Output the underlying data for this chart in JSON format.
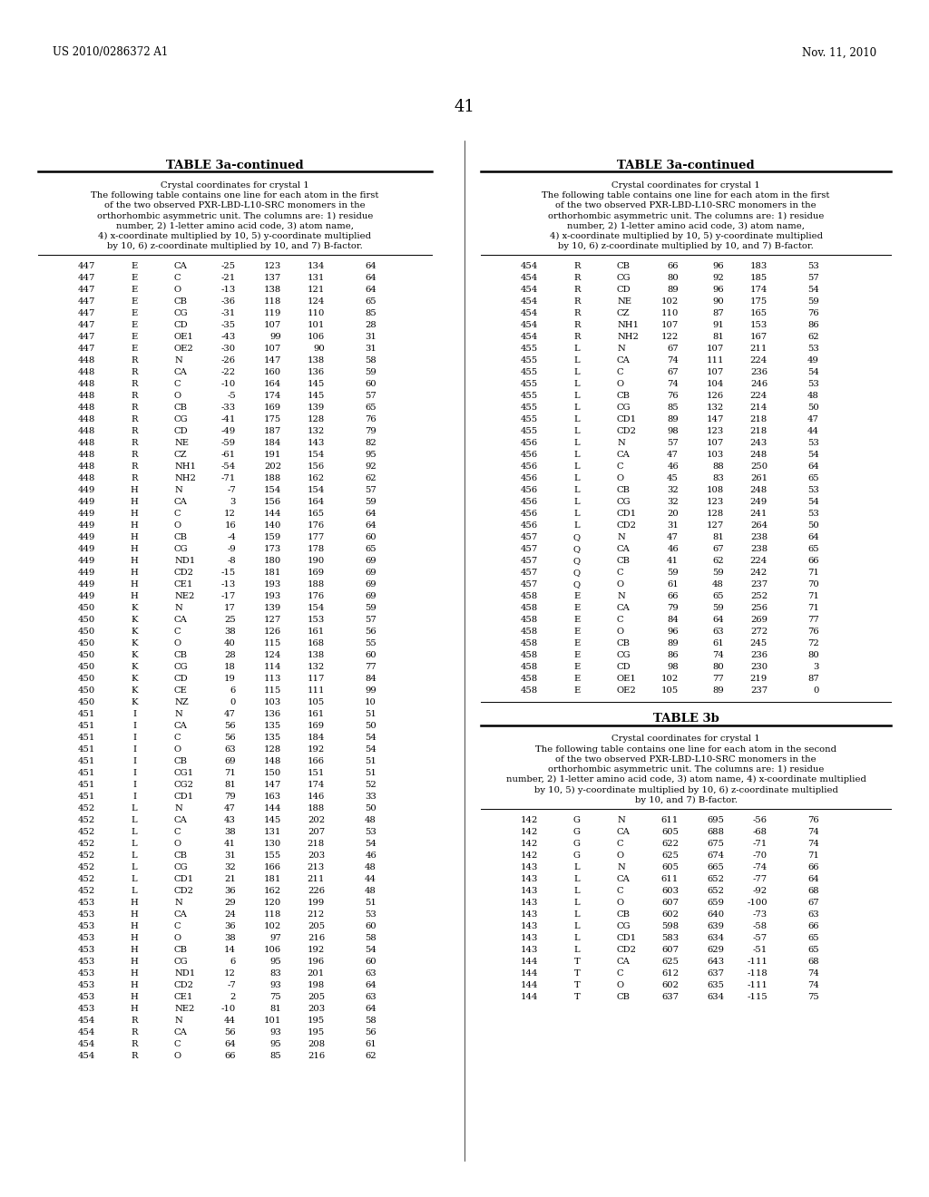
{
  "page_header_left": "US 2010/0286372 A1",
  "page_header_right": "Nov. 11, 2010",
  "page_number": "41",
  "table_title_left": "TABLE 3a-continued",
  "table_title_right": "TABLE 3a-continued",
  "table_title_bottom": "TABLE 3b",
  "caption_text": "Crystal coordinates for crystal 1\nThe following table contains one line for each atom in the first\nof the two observed PXR-LBD-L10-SRC monomers in the\northorhombic asymmetric unit. The columns are: 1) residue\nnumber, 2) 1-letter amino acid code, 3) atom name,\n4) x-coordinate multiplied by 10, 5) y-coordinate multiplied\nby 10, 6) z-coordinate multiplied by 10, and 7) B-factor.",
  "caption_text_3b": "Crystal coordinates for crystal 1\nThe following table contains one line for each atom in the second\nof the two observed PXR-LBD-L10-SRC monomers in the\northorhombic asymmetric unit. The columns are: 1) residue\nnumber, 2) 1-letter amino acid code, 3) atom name, 4) x-coordinate multiplied\nby 10, 5) y-coordinate multiplied by 10, 6) z-coordinate multiplied\nby 10, and 7) B-factor.",
  "left_table_data": [
    [
      "447",
      "E",
      "CA",
      "-25",
      "123",
      "134",
      "64"
    ],
    [
      "447",
      "E",
      "C",
      "-21",
      "137",
      "131",
      "64"
    ],
    [
      "447",
      "E",
      "O",
      "-13",
      "138",
      "121",
      "64"
    ],
    [
      "447",
      "E",
      "CB",
      "-36",
      "118",
      "124",
      "65"
    ],
    [
      "447",
      "E",
      "CG",
      "-31",
      "119",
      "110",
      "85"
    ],
    [
      "447",
      "E",
      "CD",
      "-35",
      "107",
      "101",
      "28"
    ],
    [
      "447",
      "E",
      "OE1",
      "-43",
      "99",
      "106",
      "31"
    ],
    [
      "447",
      "E",
      "OE2",
      "-30",
      "107",
      "90",
      "31"
    ],
    [
      "448",
      "R",
      "N",
      "-26",
      "147",
      "138",
      "58"
    ],
    [
      "448",
      "R",
      "CA",
      "-22",
      "160",
      "136",
      "59"
    ],
    [
      "448",
      "R",
      "C",
      "-10",
      "164",
      "145",
      "60"
    ],
    [
      "448",
      "R",
      "O",
      "-5",
      "174",
      "145",
      "57"
    ],
    [
      "448",
      "R",
      "CB",
      "-33",
      "169",
      "139",
      "65"
    ],
    [
      "448",
      "R",
      "CG",
      "-41",
      "175",
      "128",
      "76"
    ],
    [
      "448",
      "R",
      "CD",
      "-49",
      "187",
      "132",
      "79"
    ],
    [
      "448",
      "R",
      "NE",
      "-59",
      "184",
      "143",
      "82"
    ],
    [
      "448",
      "R",
      "CZ",
      "-61",
      "191",
      "154",
      "95"
    ],
    [
      "448",
      "R",
      "NH1",
      "-54",
      "202",
      "156",
      "92"
    ],
    [
      "448",
      "R",
      "NH2",
      "-71",
      "188",
      "162",
      "62"
    ],
    [
      "449",
      "H",
      "N",
      "-7",
      "154",
      "154",
      "57"
    ],
    [
      "449",
      "H",
      "CA",
      "3",
      "156",
      "164",
      "59"
    ],
    [
      "449",
      "H",
      "C",
      "12",
      "144",
      "165",
      "64"
    ],
    [
      "449",
      "H",
      "O",
      "16",
      "140",
      "176",
      "64"
    ],
    [
      "449",
      "H",
      "CB",
      "-4",
      "159",
      "177",
      "60"
    ],
    [
      "449",
      "H",
      "CG",
      "-9",
      "173",
      "178",
      "65"
    ],
    [
      "449",
      "H",
      "ND1",
      "-8",
      "180",
      "190",
      "69"
    ],
    [
      "449",
      "H",
      "CD2",
      "-15",
      "181",
      "169",
      "69"
    ],
    [
      "449",
      "H",
      "CE1",
      "-13",
      "193",
      "188",
      "69"
    ],
    [
      "449",
      "H",
      "NE2",
      "-17",
      "193",
      "176",
      "69"
    ],
    [
      "450",
      "K",
      "N",
      "17",
      "139",
      "154",
      "59"
    ],
    [
      "450",
      "K",
      "CA",
      "25",
      "127",
      "153",
      "57"
    ],
    [
      "450",
      "K",
      "C",
      "38",
      "126",
      "161",
      "56"
    ],
    [
      "450",
      "K",
      "O",
      "40",
      "115",
      "168",
      "55"
    ],
    [
      "450",
      "K",
      "CB",
      "28",
      "124",
      "138",
      "60"
    ],
    [
      "450",
      "K",
      "CG",
      "18",
      "114",
      "132",
      "77"
    ],
    [
      "450",
      "K",
      "CD",
      "19",
      "113",
      "117",
      "84"
    ],
    [
      "450",
      "K",
      "CE",
      "6",
      "115",
      "111",
      "99"
    ],
    [
      "450",
      "K",
      "NZ",
      "0",
      "103",
      "105",
      "10"
    ],
    [
      "451",
      "I",
      "N",
      "47",
      "136",
      "161",
      "51"
    ],
    [
      "451",
      "I",
      "CA",
      "56",
      "135",
      "169",
      "50"
    ],
    [
      "451",
      "I",
      "C",
      "56",
      "135",
      "184",
      "54"
    ],
    [
      "451",
      "I",
      "O",
      "63",
      "128",
      "192",
      "54"
    ],
    [
      "451",
      "I",
      "CB",
      "69",
      "148",
      "166",
      "51"
    ],
    [
      "451",
      "I",
      "CG1",
      "71",
      "150",
      "151",
      "51"
    ],
    [
      "451",
      "I",
      "CG2",
      "81",
      "147",
      "174",
      "52"
    ],
    [
      "451",
      "I",
      "CD1",
      "79",
      "163",
      "146",
      "33"
    ],
    [
      "452",
      "L",
      "N",
      "47",
      "144",
      "188",
      "50"
    ],
    [
      "452",
      "L",
      "CA",
      "43",
      "145",
      "202",
      "48"
    ],
    [
      "452",
      "L",
      "C",
      "38",
      "131",
      "207",
      "53"
    ],
    [
      "452",
      "L",
      "O",
      "41",
      "130",
      "218",
      "54"
    ],
    [
      "452",
      "L",
      "CB",
      "31",
      "155",
      "203",
      "46"
    ],
    [
      "452",
      "L",
      "CG",
      "32",
      "166",
      "213",
      "48"
    ],
    [
      "452",
      "L",
      "CD1",
      "21",
      "181",
      "211",
      "44"
    ],
    [
      "452",
      "L",
      "CD2",
      "36",
      "162",
      "226",
      "48"
    ],
    [
      "453",
      "H",
      "N",
      "29",
      "120",
      "199",
      "51"
    ],
    [
      "453",
      "H",
      "CA",
      "24",
      "118",
      "212",
      "53"
    ],
    [
      "453",
      "H",
      "C",
      "36",
      "102",
      "205",
      "60"
    ],
    [
      "453",
      "H",
      "O",
      "38",
      "97",
      "216",
      "58"
    ],
    [
      "453",
      "H",
      "CB",
      "14",
      "106",
      "192",
      "54"
    ],
    [
      "453",
      "H",
      "CG",
      "6",
      "95",
      "196",
      "60"
    ],
    [
      "453",
      "H",
      "ND1",
      "12",
      "83",
      "201",
      "63"
    ],
    [
      "453",
      "H",
      "CD2",
      "-7",
      "93",
      "198",
      "64"
    ],
    [
      "453",
      "H",
      "CE1",
      "2",
      "75",
      "205",
      "63"
    ],
    [
      "453",
      "H",
      "NE2",
      "-10",
      "81",
      "203",
      "64"
    ],
    [
      "454",
      "R",
      "N",
      "44",
      "101",
      "195",
      "58"
    ],
    [
      "454",
      "R",
      "CA",
      "56",
      "93",
      "195",
      "56"
    ],
    [
      "454",
      "R",
      "C",
      "64",
      "95",
      "208",
      "61"
    ],
    [
      "454",
      "R",
      "O",
      "66",
      "85",
      "216",
      "62"
    ]
  ],
  "right_table_data": [
    [
      "454",
      "R",
      "CB",
      "66",
      "96",
      "183",
      "53"
    ],
    [
      "454",
      "R",
      "CG",
      "80",
      "92",
      "185",
      "57"
    ],
    [
      "454",
      "R",
      "CD",
      "89",
      "96",
      "174",
      "54"
    ],
    [
      "454",
      "R",
      "NE",
      "102",
      "90",
      "175",
      "59"
    ],
    [
      "454",
      "R",
      "CZ",
      "110",
      "87",
      "165",
      "76"
    ],
    [
      "454",
      "R",
      "NH1",
      "107",
      "91",
      "153",
      "86"
    ],
    [
      "454",
      "R",
      "NH2",
      "122",
      "81",
      "167",
      "62"
    ],
    [
      "455",
      "L",
      "N",
      "67",
      "107",
      "211",
      "53"
    ],
    [
      "455",
      "L",
      "CA",
      "74",
      "111",
      "224",
      "49"
    ],
    [
      "455",
      "L",
      "C",
      "67",
      "107",
      "236",
      "54"
    ],
    [
      "455",
      "L",
      "O",
      "74",
      "104",
      "246",
      "53"
    ],
    [
      "455",
      "L",
      "CB",
      "76",
      "126",
      "224",
      "48"
    ],
    [
      "455",
      "L",
      "CG",
      "85",
      "132",
      "214",
      "50"
    ],
    [
      "455",
      "L",
      "CD1",
      "89",
      "147",
      "218",
      "47"
    ],
    [
      "455",
      "L",
      "CD2",
      "98",
      "123",
      "218",
      "44"
    ],
    [
      "456",
      "L",
      "N",
      "57",
      "107",
      "243",
      "53"
    ],
    [
      "456",
      "L",
      "CA",
      "47",
      "103",
      "248",
      "54"
    ],
    [
      "456",
      "L",
      "C",
      "46",
      "88",
      "250",
      "64"
    ],
    [
      "456",
      "L",
      "O",
      "45",
      "83",
      "261",
      "65"
    ],
    [
      "456",
      "L",
      "CB",
      "32",
      "108",
      "248",
      "53"
    ],
    [
      "456",
      "L",
      "CG",
      "32",
      "123",
      "249",
      "54"
    ],
    [
      "456",
      "L",
      "CD1",
      "20",
      "128",
      "241",
      "53"
    ],
    [
      "456",
      "L",
      "CD2",
      "31",
      "127",
      "264",
      "50"
    ],
    [
      "457",
      "Q",
      "N",
      "47",
      "81",
      "238",
      "64"
    ],
    [
      "457",
      "Q",
      "CA",
      "46",
      "67",
      "238",
      "65"
    ],
    [
      "457",
      "Q",
      "CB",
      "41",
      "62",
      "224",
      "66"
    ],
    [
      "457",
      "Q",
      "C",
      "59",
      "59",
      "242",
      "71"
    ],
    [
      "457",
      "Q",
      "O",
      "61",
      "48",
      "237",
      "70"
    ],
    [
      "458",
      "E",
      "N",
      "66",
      "65",
      "252",
      "71"
    ],
    [
      "458",
      "E",
      "CA",
      "79",
      "59",
      "256",
      "71"
    ],
    [
      "458",
      "E",
      "C",
      "84",
      "64",
      "269",
      "77"
    ],
    [
      "458",
      "E",
      "O",
      "96",
      "63",
      "272",
      "76"
    ],
    [
      "458",
      "E",
      "CB",
      "89",
      "61",
      "245",
      "72"
    ],
    [
      "458",
      "E",
      "CG",
      "86",
      "74",
      "236",
      "80"
    ],
    [
      "458",
      "E",
      "CD",
      "98",
      "80",
      "230",
      "3"
    ],
    [
      "458",
      "E",
      "OE1",
      "102",
      "77",
      "219",
      "87"
    ],
    [
      "458",
      "E",
      "OE2",
      "105",
      "89",
      "237",
      "0"
    ]
  ],
  "table3b_data": [
    [
      "142",
      "G",
      "N",
      "611",
      "695",
      "-56",
      "76"
    ],
    [
      "142",
      "G",
      "CA",
      "605",
      "688",
      "-68",
      "74"
    ],
    [
      "142",
      "G",
      "C",
      "622",
      "675",
      "-71",
      "74"
    ],
    [
      "142",
      "G",
      "O",
      "625",
      "674",
      "-70",
      "71"
    ],
    [
      "143",
      "L",
      "N",
      "605",
      "665",
      "-74",
      "66"
    ],
    [
      "143",
      "L",
      "CA",
      "611",
      "652",
      "-77",
      "64"
    ],
    [
      "143",
      "L",
      "C",
      "603",
      "652",
      "-92",
      "68"
    ],
    [
      "143",
      "L",
      "O",
      "607",
      "659",
      "-100",
      "67"
    ],
    [
      "143",
      "L",
      "CB",
      "602",
      "640",
      "-73",
      "63"
    ],
    [
      "143",
      "L",
      "CG",
      "598",
      "639",
      "-58",
      "66"
    ],
    [
      "143",
      "L",
      "CD1",
      "583",
      "634",
      "-57",
      "65"
    ],
    [
      "143",
      "L",
      "CD2",
      "607",
      "629",
      "-51",
      "65"
    ],
    [
      "144",
      "T",
      "CA",
      "625",
      "643",
      "-111",
      "68"
    ],
    [
      "144",
      "T",
      "C",
      "612",
      "637",
      "-118",
      "74"
    ],
    [
      "144",
      "T",
      "O",
      "602",
      "635",
      "-111",
      "74"
    ],
    [
      "144",
      "T",
      "CB",
      "637",
      "634",
      "-115",
      "75"
    ]
  ]
}
